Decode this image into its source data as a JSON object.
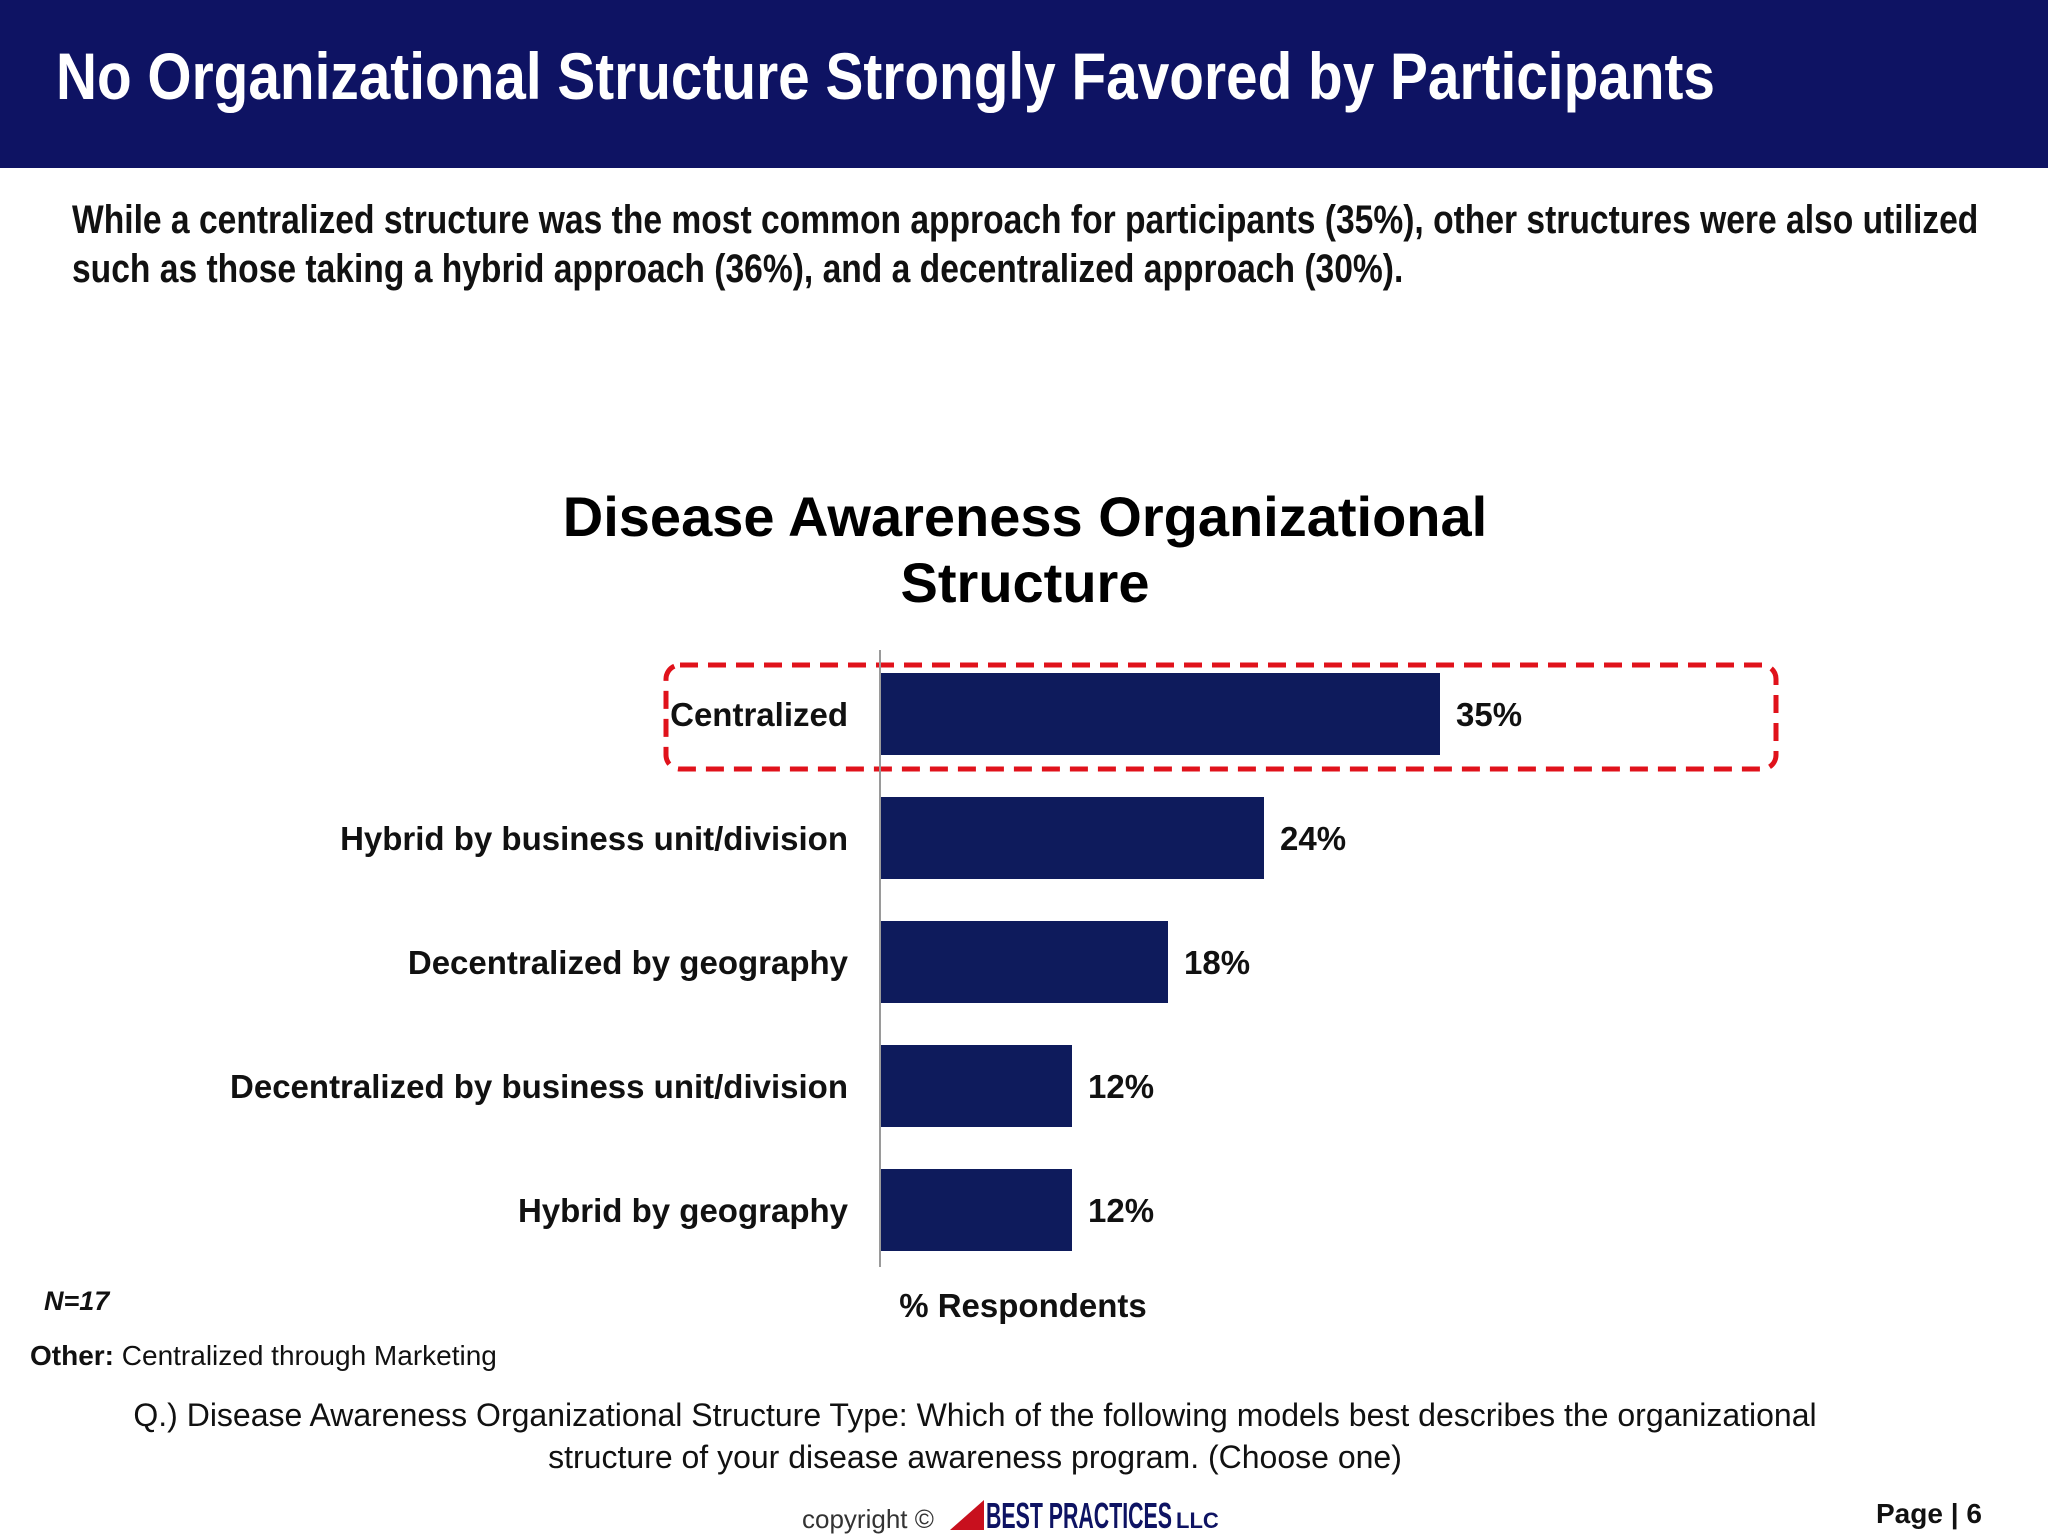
{
  "header": {
    "title": "No Organizational Structure Strongly Favored by Participants"
  },
  "summary": {
    "line1": "While a centralized structure was the most common approach for participants (35%), other structures were also utilized",
    "line2": "such as those taking a hybrid approach (36%), and a decentralized approach (30%)."
  },
  "chart_data": {
    "type": "bar",
    "orientation": "horizontal",
    "title_line1": "Disease Awareness Organizational",
    "title_line2": "Structure",
    "categories": [
      "Centralized",
      "Hybrid by business unit/division",
      "Decentralized by geography",
      "Decentralized by business unit/division",
      "Hybrid by geography"
    ],
    "values": [
      35,
      24,
      18,
      12,
      12
    ],
    "value_labels": [
      "35%",
      "24%",
      "18%",
      "12%",
      "12%"
    ],
    "xlabel": "% Respondents",
    "xlim": [
      0,
      40
    ],
    "grid": false,
    "highlighted_category": "Centralized",
    "bar_color": "#0e1b5c",
    "highlight_color": "#e0121b"
  },
  "notes": {
    "n": "N=17",
    "other_label": "Other:",
    "other_text": " Centralized through Marketing",
    "question_line1": "Q.) Disease Awareness Organizational Structure Type:  Which of the following models best describes the organizational",
    "question_line2": "structure of your disease awareness program. (Choose one)"
  },
  "footer": {
    "copyright": "copyright ©",
    "logo_text": "BEST PRACTICES",
    "logo_suffix": "LLC",
    "page": "Page | 6"
  }
}
